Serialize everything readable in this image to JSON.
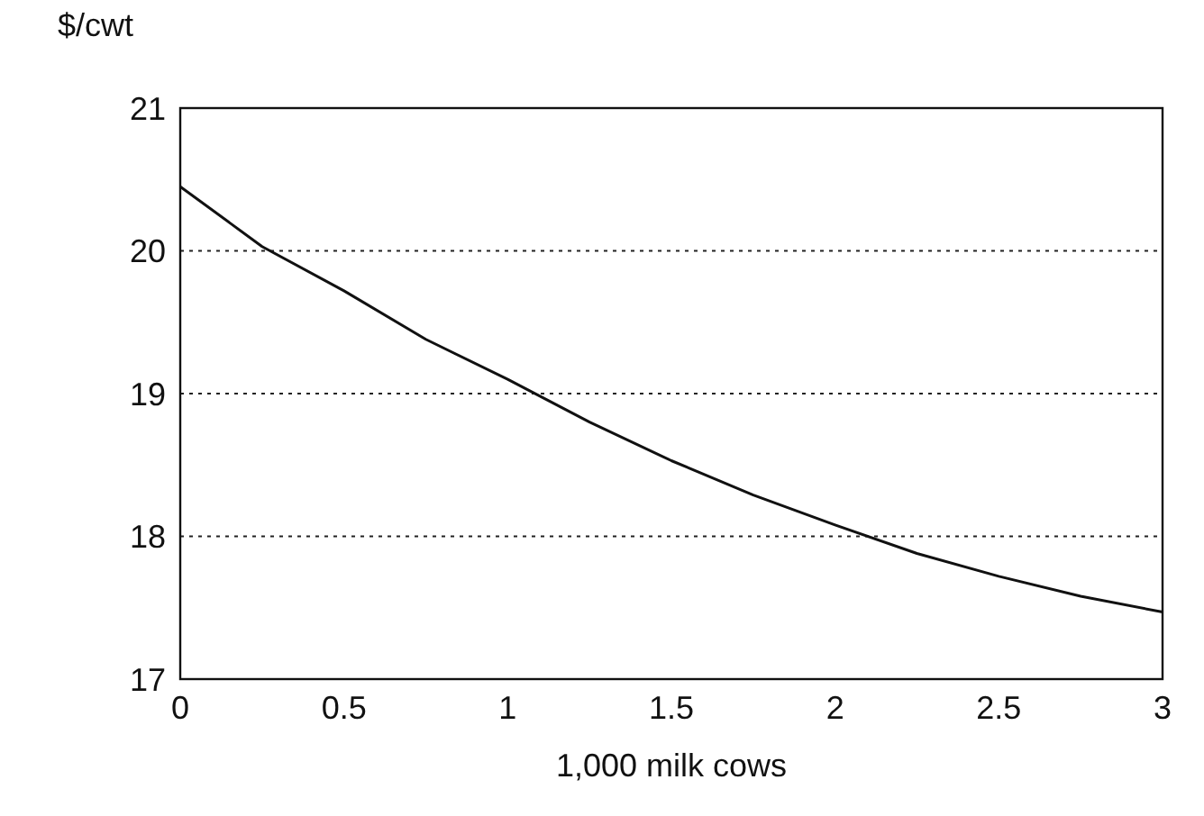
{
  "chart_data": {
    "type": "line",
    "xlabel": "1,000 milk cows",
    "ylabel": "$/cwt",
    "x": [
      0,
      0.25,
      0.5,
      0.75,
      1,
      1.25,
      1.5,
      1.75,
      2,
      2.25,
      2.5,
      2.75,
      3
    ],
    "series": [
      {
        "color": "#111111",
        "values": [
          20.45,
          20.03,
          19.72,
          19.38,
          19.1,
          18.8,
          18.53,
          18.29,
          18.08,
          17.88,
          17.72,
          17.58,
          17.47
        ]
      }
    ],
    "xlim": [
      0,
      3
    ],
    "xticks": [
      0,
      0.5,
      1,
      1.5,
      2,
      2.5,
      3
    ],
    "ylim": [
      17,
      21
    ],
    "yticks": [
      17,
      18,
      19,
      20,
      21
    ],
    "grid": "y",
    "line_style": "solid",
    "marker": "none"
  }
}
